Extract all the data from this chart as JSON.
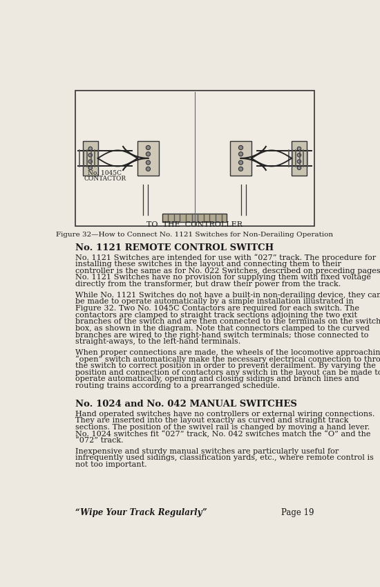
{
  "bg_color": "#ede8e0",
  "text_color": "#1a1a1a",
  "figure_caption": "Figure 32—How to Connect No. 1121 Switches for Non-Derailing Operation",
  "section1_heading": "No. 1121 REMOTE CONTROL SWITCH",
  "section1_para1": "No. 1121 Switches are intended for use with “027” track.  The procedure for installing these switches in the layout and connecting them to their controller is the same as for No. 022 Switches, described on preceding pages. No. 1121 Switches have no provision for supplying them with fixed voltage directly from the transformer, but draw their power from the track.",
  "section1_para2": "While No. 1121 Switches do not have a built-in non-derailing device, they can be made to operate automatically by a simple installation illustrated in Figure 32.  Two No. 1045C Contactors are required for each switch. The contactors are clamped to straight track sections adjoining the two exit branches of the switch and are then connected to the terminals on the switch box, as shown in the diagram.  Note that connectors clamped to the curved branches are wired to the right-hand switch terminals; those connected to straight-aways, to the left-hand terminals.",
  "section1_para3": "When proper connections are made, the wheels of the locomotive approaching an “open” switch automatically make the necessary electrical connection to throw the switch to correct position in order to prevent derailment.  By varying the position and connection of contactors any switch in the layout can be made to operate automatically, opening and closing sidings and branch lines and routing trains according to a prearranged schedule.",
  "section2_heading": "No. 1024 and No. 042 MANUAL SWITCHES",
  "section2_para1": "Hand operated switches have no controllers or external wiring connections. They are inserted into the layout exactly as curved and straight track sections.  The position of the swivel rail is changed by moving a hand lever. No. 1024 switches fit “027” track, No. 042 switches match the “O” and the “072” track.",
  "section2_para2": "Inexpensive and sturdy manual switches are particularly useful for infrequently used sidings, classification yards, etc., where remote control is not too important.",
  "footer_left": "“Wipe Your Track Regularly”",
  "footer_right": "Page 19",
  "diagram_label1_line1": "No. 1045C",
  "diagram_label1_line2": "CONTACTOR",
  "diagram_label2": "TO  THE  CONTROLLER"
}
